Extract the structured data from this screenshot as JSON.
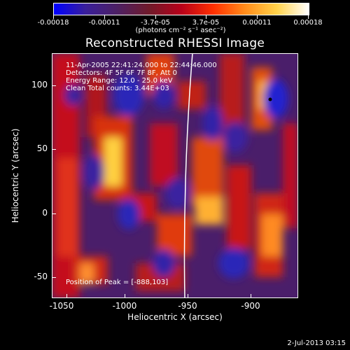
{
  "colorbar": {
    "ticks": [
      "-0.00018",
      "-0.00011",
      "-3.7e-05",
      "3.7e-05",
      "0.00011",
      "0.00018"
    ],
    "units": "(photons cm⁻² s⁻¹ asec⁻²)",
    "gradient": [
      "#0000ff",
      "#3a1f9a",
      "#4d2063",
      "#701a2a",
      "#b8001a",
      "#ff2f00",
      "#ff8c1a",
      "#ffd24a",
      "#ffffff"
    ]
  },
  "title": "Reconstructed RHESSI Image",
  "info": {
    "time": "11-Apr-2005 22:41:24.000 to 22:44:46.000",
    "detectors": "Detectors: 4F 5F 6F 7F 8F, Att 0",
    "energy": "Energy Range: 12.0 - 25.0 keV",
    "method": "Clean     Total counts: 3.44E+03",
    "peak": "Position of Peak = [-888,103]"
  },
  "axes": {
    "xlabel": "Heliocentric X (arcsec)",
    "ylabel": "Heliocentric Y (arcsec)",
    "xticks": [
      "-1050",
      "-1000",
      "-950",
      "-900"
    ],
    "yticks": [
      "100",
      "50",
      "0",
      "-50"
    ],
    "xlim": [
      -1062,
      -869
    ],
    "ylim": [
      -65,
      127
    ]
  },
  "timestamp": "2-Jul-2013 03:15"
}
